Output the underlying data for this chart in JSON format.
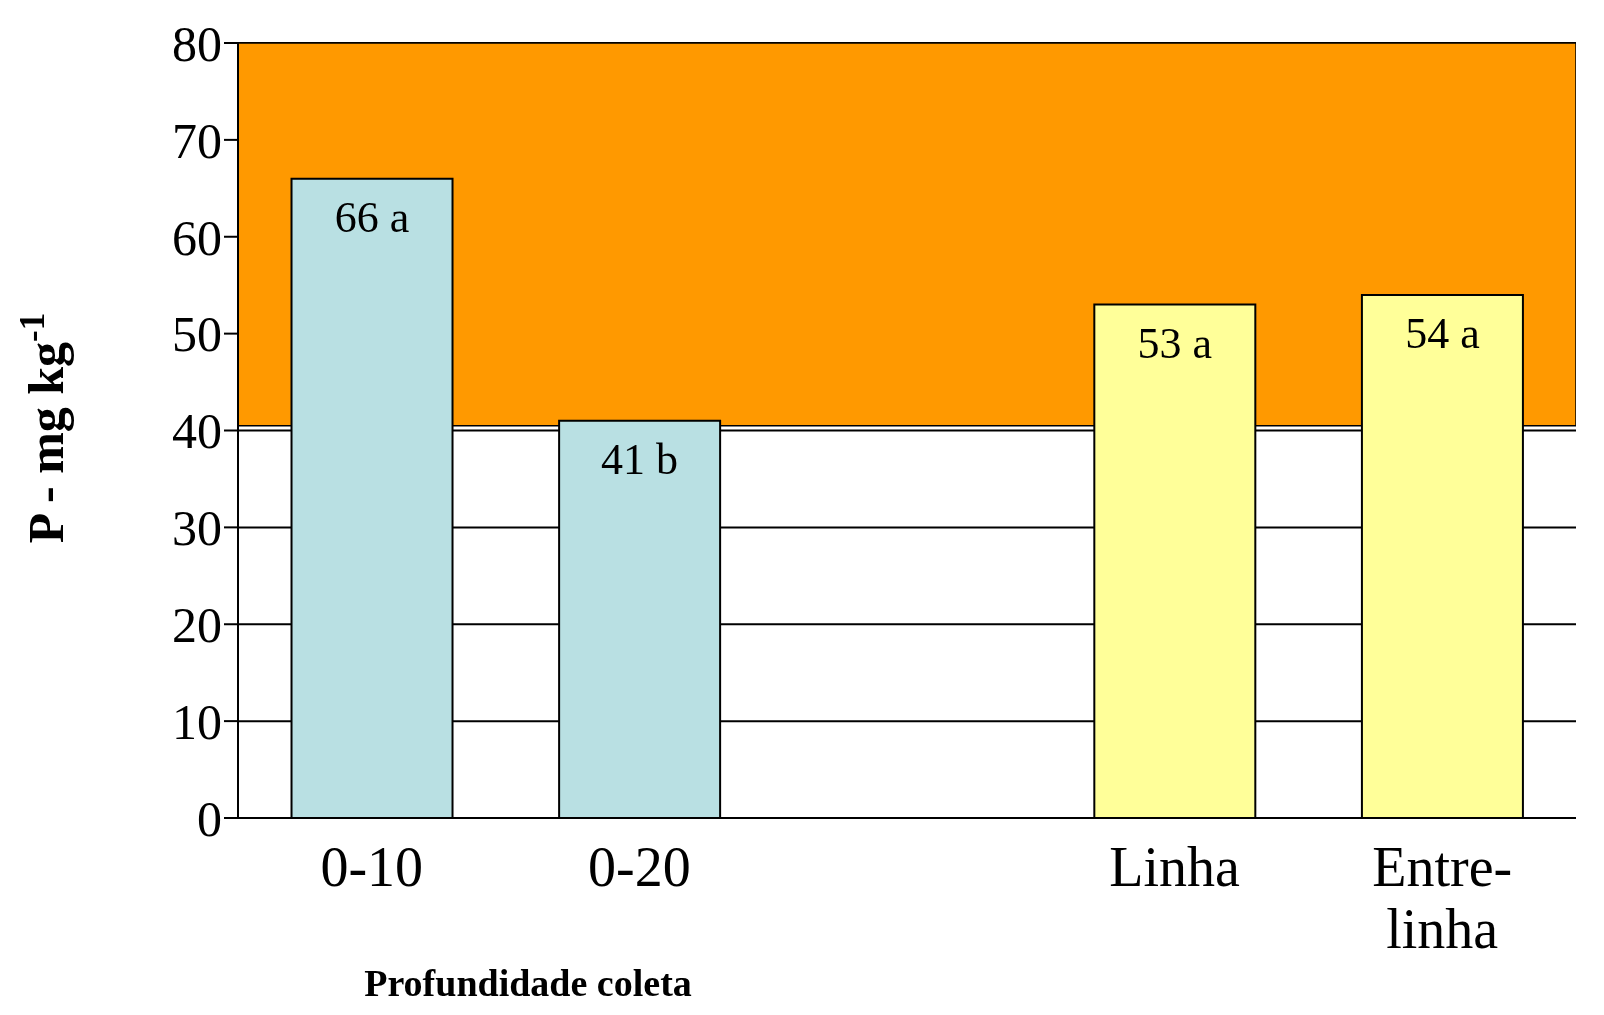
{
  "chart_data": {
    "type": "bar",
    "xlabel": "Profundidade coleta",
    "ylabel": "P - mg kg$^{-1}$",
    "categories": [
      "0-10",
      "0-20",
      null,
      "Linha",
      "Entre-linha"
    ],
    "values": [
      66,
      41,
      null,
      53,
      54
    ],
    "colors": [
      "#b9e0e3",
      "#b9e0e3",
      "#ffffff",
      "#ffff99",
      "#ffff99"
    ],
    "value_labels": [
      "66 a",
      "41 b",
      null,
      "53 a",
      "54 a"
    ],
    "ylim": [
      0,
      80
    ],
    "yticks": [
      0,
      10,
      20,
      30,
      40,
      50,
      60,
      70,
      80
    ],
    "grid": "y",
    "bands": [
      {
        "axis": "y",
        "from": 40.5,
        "to": 80,
        "color": "#ff9900"
      }
    ]
  }
}
